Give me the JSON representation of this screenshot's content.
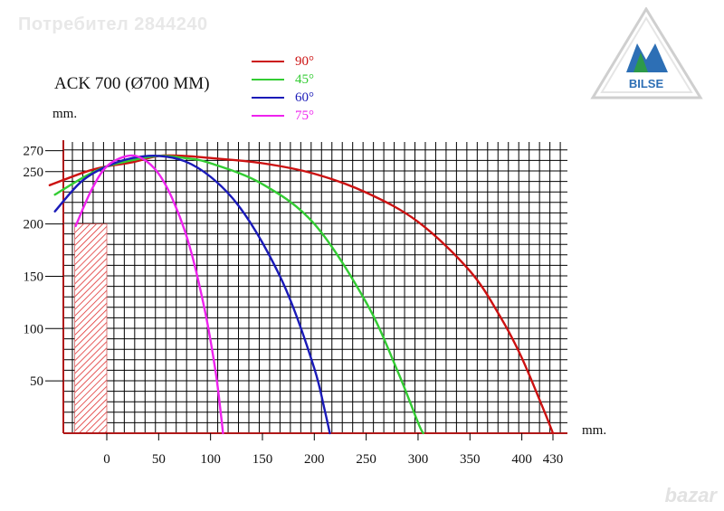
{
  "watermark": "Потребител 2844240",
  "logo": {
    "text": "BILSE",
    "color": "#2d6fb5",
    "accent": "#2d9a4a"
  },
  "brand_mark": "bazar",
  "chart_data": {
    "type": "line",
    "title": "ACK 700 (Ø700 MM)",
    "ylabel": "mm.",
    "xlabel": "mm.",
    "xlim": [
      -40,
      440
    ],
    "ylim": [
      0,
      280
    ],
    "x_ticks": [
      0,
      50,
      100,
      150,
      200,
      250,
      300,
      350,
      400,
      430
    ],
    "y_ticks": [
      50,
      100,
      150,
      200,
      250,
      270
    ],
    "grid": true,
    "legend_position": "top",
    "hatched_block": {
      "x": [
        -30,
        0
      ],
      "y": [
        0,
        200
      ],
      "color": "#e03030"
    },
    "series": [
      {
        "name": "90°",
        "color": "#cc1111",
        "x": [
          -55,
          -20,
          0,
          25,
          50,
          75,
          100,
          150,
          200,
          250,
          300,
          350,
          380,
          400,
          420,
          430
        ],
        "y": [
          237,
          250,
          255,
          259,
          265,
          265,
          263,
          258,
          248,
          230,
          202,
          155,
          110,
          72,
          25,
          0
        ]
      },
      {
        "name": "45°",
        "color": "#33cc33",
        "x": [
          -50,
          -20,
          0,
          25,
          50,
          75,
          100,
          150,
          200,
          250,
          280,
          300,
          305
        ],
        "y": [
          228,
          246,
          255,
          261,
          265,
          263,
          258,
          238,
          200,
          125,
          60,
          10,
          0
        ]
      },
      {
        "name": "60°",
        "color": "#1a1ab8",
        "x": [
          -50,
          -25,
          0,
          25,
          50,
          75,
          100,
          125,
          150,
          175,
          200,
          210,
          215
        ],
        "y": [
          212,
          240,
          255,
          263,
          265,
          260,
          245,
          220,
          182,
          132,
          62,
          22,
          0
        ]
      },
      {
        "name": "75°",
        "color": "#ee22ee",
        "x": [
          -30,
          -15,
          0,
          20,
          35,
          50,
          65,
          80,
          95,
          105,
          110,
          112
        ],
        "y": [
          198,
          232,
          255,
          265,
          262,
          248,
          220,
          178,
          115,
          58,
          18,
          0
        ]
      }
    ]
  }
}
